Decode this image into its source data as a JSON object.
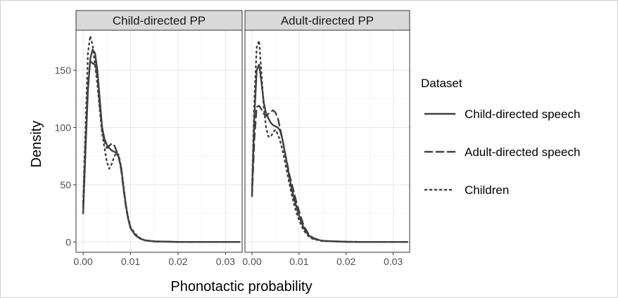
{
  "chart_data": {
    "type": "line",
    "title": "",
    "xlabel": "Phonotactic probability",
    "ylabel": "Density",
    "xlim": [
      -0.0015,
      0.0335
    ],
    "ylim": [
      -9,
      185
    ],
    "x_ticks": [
      0.0,
      0.01,
      0.02,
      0.03
    ],
    "x_tick_labels": [
      "0.00",
      "0.01",
      "0.02",
      "0.03"
    ],
    "y_ticks": [
      0,
      50,
      100,
      150
    ],
    "y_tick_labels": [
      "0",
      "50",
      "100",
      "150"
    ],
    "grid": true,
    "legend": {
      "title": "Dataset",
      "placement": "right",
      "entries": [
        "Child-directed speech",
        "Adult-directed speech",
        "Children"
      ]
    },
    "panels": [
      {
        "label": "Child-directed PP",
        "series": [
          {
            "name": "Child-directed speech",
            "linestyle": "solid",
            "x": [
              0.0,
              0.0005,
              0.001,
              0.0015,
              0.002,
              0.0025,
              0.003,
              0.0035,
              0.004,
              0.0045,
              0.005,
              0.0055,
              0.006,
              0.0065,
              0.007,
              0.0075,
              0.008,
              0.0085,
              0.009,
              0.0095,
              0.01,
              0.011,
              0.012,
              0.013,
              0.015,
              0.02,
              0.025,
              0.03,
              0.033
            ],
            "y": [
              25,
              80,
              132,
              160,
              168,
              165,
              150,
              125,
              100,
              90,
              85,
              82,
              80,
              79,
              78,
              74,
              65,
              48,
              32,
              20,
              12,
              6,
              3,
              1.5,
              0.5,
              0.1,
              0,
              0,
              0
            ]
          },
          {
            "name": "Adult-directed speech",
            "linestyle": "dashed",
            "x": [
              0.0,
              0.0005,
              0.001,
              0.0015,
              0.002,
              0.0025,
              0.003,
              0.0035,
              0.004,
              0.0045,
              0.005,
              0.0055,
              0.006,
              0.0065,
              0.007,
              0.0075,
              0.008,
              0.0085,
              0.009,
              0.0095,
              0.01,
              0.011,
              0.012,
              0.013,
              0.015,
              0.02,
              0.025,
              0.03,
              0.033
            ],
            "y": [
              30,
              88,
              138,
              158,
              156,
              155,
              145,
              120,
              97,
              88,
              82,
              84,
              86,
              85,
              80,
              74,
              63,
              47,
              31,
              20,
              12,
              6,
              3,
              1.5,
              0.5,
              0.1,
              0,
              0,
              0
            ]
          },
          {
            "name": "Children",
            "linestyle": "dotted",
            "x": [
              0.0,
              0.0005,
              0.001,
              0.0015,
              0.002,
              0.0025,
              0.003,
              0.0035,
              0.004,
              0.0045,
              0.005,
              0.0055,
              0.006,
              0.0065,
              0.007,
              0.0075,
              0.008,
              0.0085,
              0.009,
              0.0095,
              0.01,
              0.011,
              0.012,
              0.013,
              0.015,
              0.02,
              0.025,
              0.03,
              0.033
            ],
            "y": [
              35,
              100,
              165,
              180,
              172,
              155,
              138,
              115,
              95,
              82,
              70,
              64,
              68,
              74,
              78,
              76,
              66,
              50,
              33,
              21,
              13,
              7,
              3.5,
              1.5,
              0.5,
              0.1,
              0,
              0,
              0
            ]
          }
        ]
      },
      {
        "label": "Adult-directed PP",
        "series": [
          {
            "name": "Child-directed speech",
            "linestyle": "solid",
            "x": [
              0.0,
              0.0005,
              0.001,
              0.0015,
              0.002,
              0.0025,
              0.003,
              0.0035,
              0.004,
              0.0045,
              0.005,
              0.0055,
              0.006,
              0.0065,
              0.007,
              0.0075,
              0.008,
              0.0085,
              0.009,
              0.0095,
              0.01,
              0.011,
              0.012,
              0.013,
              0.015,
              0.02,
              0.025,
              0.03,
              0.033
            ],
            "y": [
              42,
              110,
              150,
              155,
              140,
              122,
              112,
              108,
              104,
              102,
              101,
              100,
              97,
              89,
              78,
              67,
              55,
              45,
              37,
              30,
              23,
              12,
              6,
              3,
              1,
              0.2,
              0,
              0,
              0
            ]
          },
          {
            "name": "Adult-directed speech",
            "linestyle": "dashed",
            "x": [
              0.0,
              0.0005,
              0.001,
              0.0015,
              0.002,
              0.0025,
              0.003,
              0.0035,
              0.004,
              0.0045,
              0.005,
              0.0055,
              0.006,
              0.0065,
              0.007,
              0.0075,
              0.008,
              0.0085,
              0.009,
              0.0095,
              0.01,
              0.011,
              0.012,
              0.013,
              0.015,
              0.02,
              0.025,
              0.03,
              0.033
            ],
            "y": [
              40,
              90,
              118,
              119,
              116,
              112,
              110,
              112,
              114,
              115,
              113,
              108,
              99,
              89,
              78,
              68,
              58,
              50,
              42,
              34,
              27,
              14,
              7,
              3.5,
              1,
              0.2,
              0,
              0,
              0
            ]
          },
          {
            "name": "Children",
            "linestyle": "dotted",
            "x": [
              0.0,
              0.0005,
              0.001,
              0.0015,
              0.002,
              0.0025,
              0.003,
              0.0035,
              0.004,
              0.0045,
              0.005,
              0.0055,
              0.006,
              0.0065,
              0.007,
              0.0075,
              0.008,
              0.0085,
              0.009,
              0.0095,
              0.01,
              0.011,
              0.012,
              0.013,
              0.015,
              0.02,
              0.025,
              0.03,
              0.033
            ],
            "y": [
              45,
              125,
              170,
              176,
              148,
              118,
              100,
              92,
              92,
              96,
              98,
              94,
              88,
              80,
              70,
              60,
              50,
              40,
              32,
              25,
              19,
              10,
              5,
              2.5,
              0.8,
              0.2,
              0,
              0,
              0
            ]
          }
        ]
      }
    ]
  }
}
